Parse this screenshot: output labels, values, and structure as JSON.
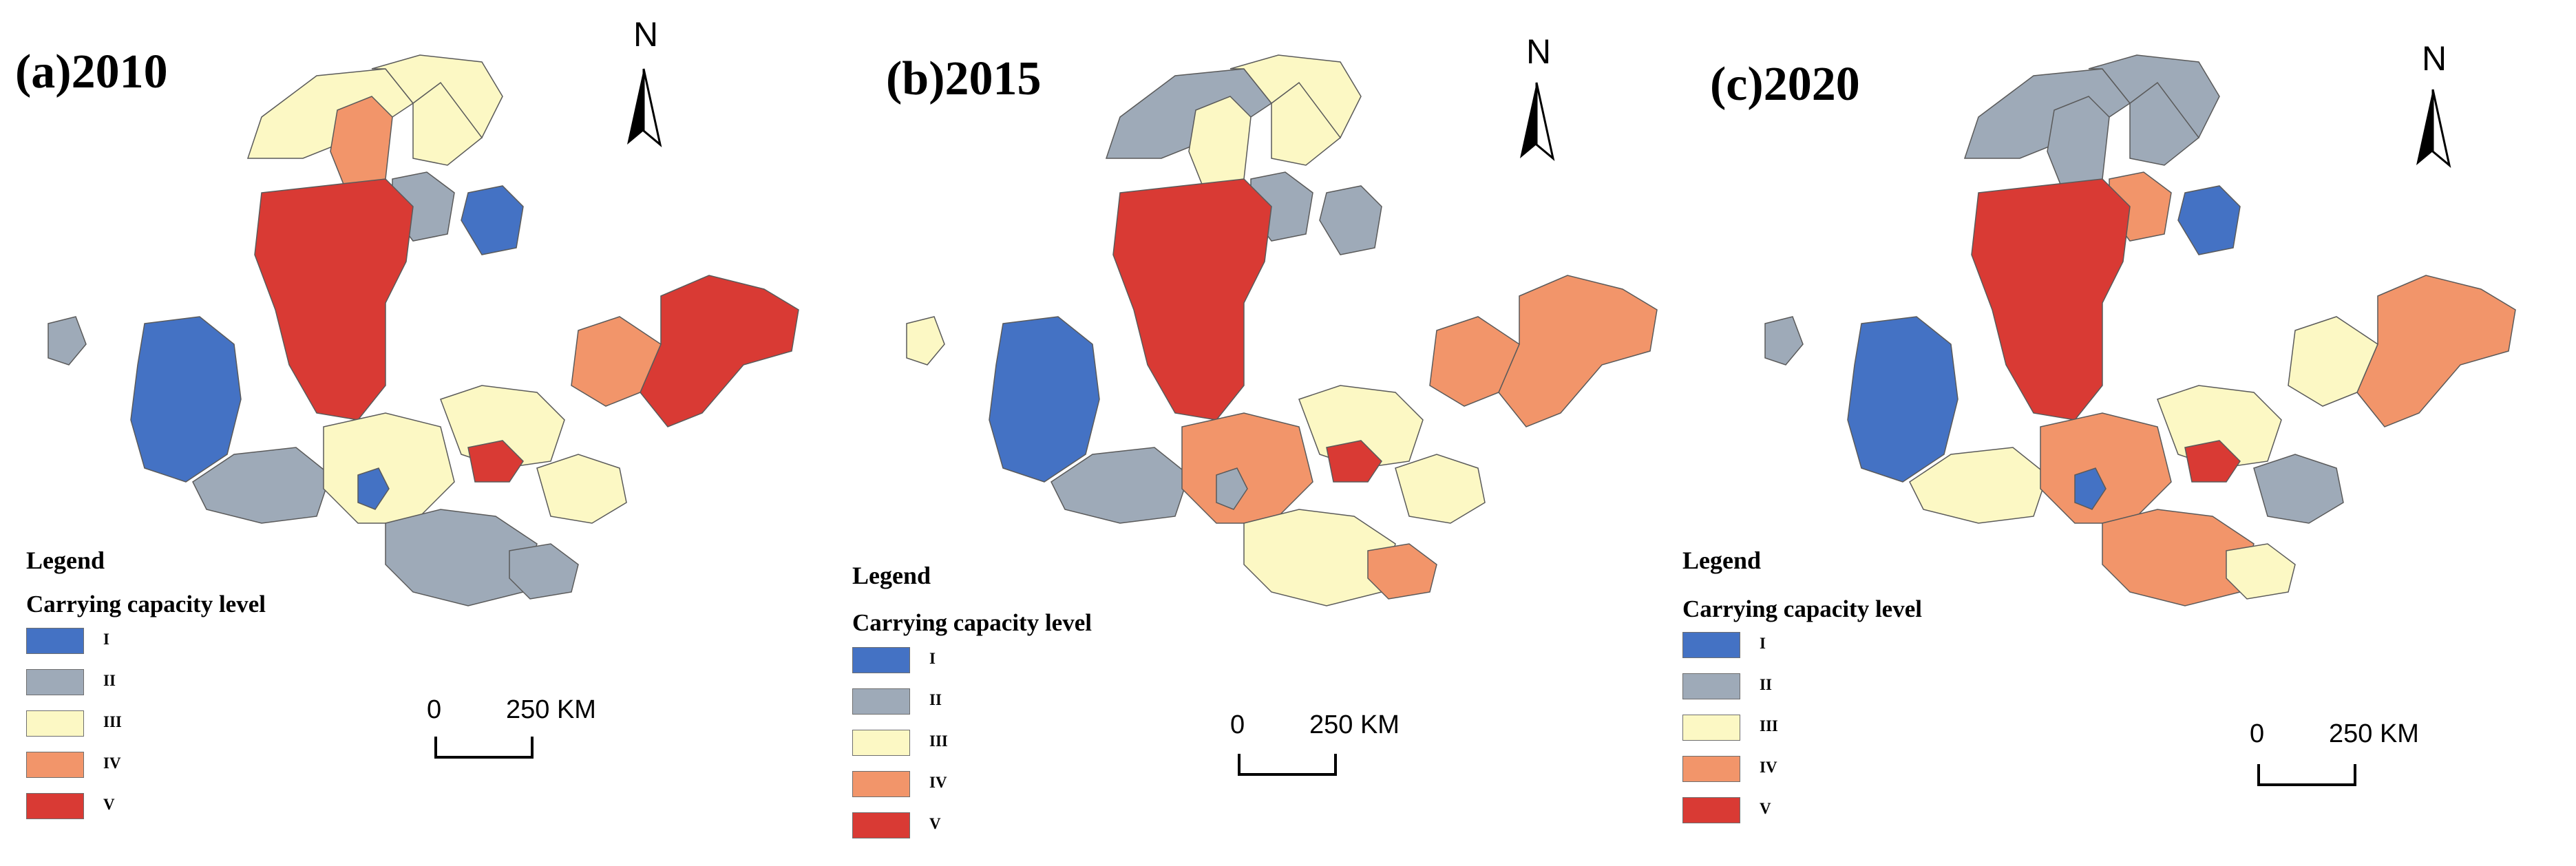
{
  "colors": {
    "I": "#4472c4",
    "II": "#9eaab8",
    "III": "#fcf8c4",
    "IV": "#f2956a",
    "V": "#d93a34",
    "border": "#5a5a5a"
  },
  "north_label": "N",
  "legend": {
    "title": "Legend",
    "subtitle": "Carrying capacity level",
    "levels": [
      "I",
      "II",
      "III",
      "IV",
      "V"
    ]
  },
  "scale_bar": {
    "left": "0",
    "right": "250 KM"
  },
  "panels": [
    {
      "title": "(a)2010"
    },
    {
      "title": "(b)2015"
    },
    {
      "title": "(c)2020"
    }
  ],
  "map_data": [
    {
      "year": 2010,
      "regions": {
        "nw_cap": "III",
        "north_band": "III",
        "north_tall": "IV",
        "north_peak": "III",
        "ne_corner": "I",
        "upper_center": "II",
        "central_big": "V",
        "west_island": "II",
        "west_big": "I",
        "southwest": "II",
        "south_center": "III",
        "center_east": "III",
        "east_coast": "V",
        "east_inner": "IV",
        "inner_hot": "V",
        "tiny_blue": "I",
        "south_hills": "II",
        "southeast_tail": "III",
        "se_small": "II"
      }
    },
    {
      "year": 2015,
      "regions": {
        "nw_cap": "II",
        "north_band": "III",
        "north_tall": "III",
        "north_peak": "III",
        "ne_corner": "II",
        "upper_center": "II",
        "central_big": "V",
        "west_island": "III",
        "west_big": "I",
        "southwest": "II",
        "south_center": "IV",
        "center_east": "III",
        "east_coast": "IV",
        "east_inner": "IV",
        "inner_hot": "V",
        "tiny_blue": "II",
        "south_hills": "III",
        "southeast_tail": "III",
        "se_small": "IV"
      }
    },
    {
      "year": 2020,
      "regions": {
        "nw_cap": "II",
        "north_band": "II",
        "north_tall": "II",
        "north_peak": "II",
        "ne_corner": "I",
        "upper_center": "IV",
        "central_big": "V",
        "west_island": "II",
        "west_big": "I",
        "southwest": "III",
        "south_center": "IV",
        "center_east": "III",
        "east_coast": "IV",
        "east_inner": "III",
        "inner_hot": "V",
        "tiny_blue": "I",
        "south_hills": "IV",
        "southeast_tail": "II",
        "se_small": "III"
      }
    }
  ]
}
